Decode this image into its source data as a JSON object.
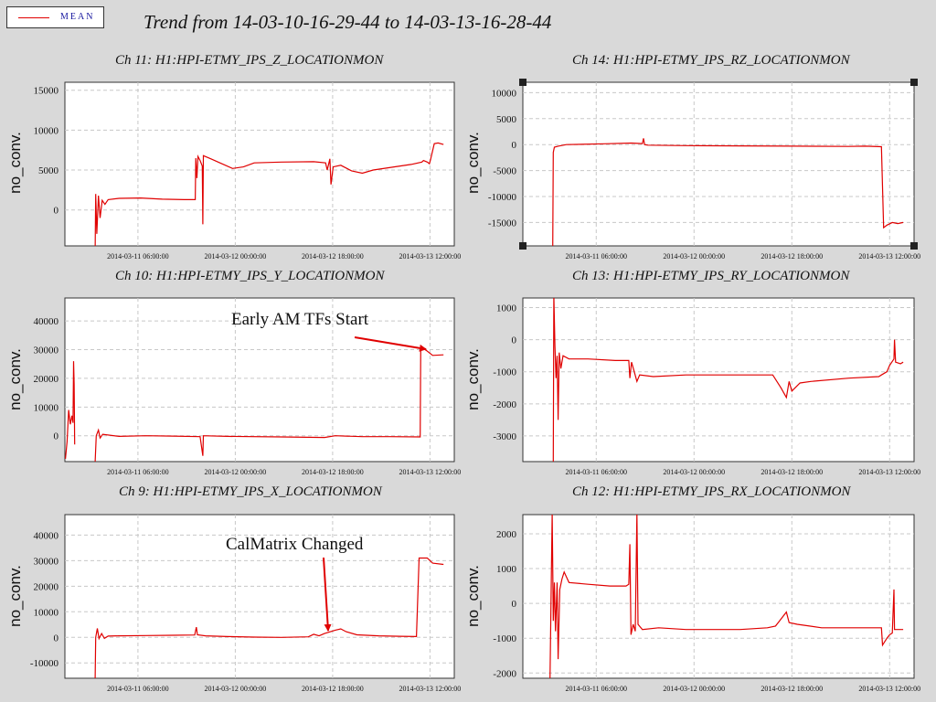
{
  "title": "Trend from 14-03-10-16-29-44 to 14-03-13-16-28-44",
  "legend": {
    "label": "MEAN",
    "color": "#e00000"
  },
  "chart_data": [
    {
      "type": "line",
      "title": "Ch 11: H1:HPI-ETMY_IPS_Z_LOCATIONMON",
      "ylabel": "no_conv.",
      "xlabel": "",
      "yticks": [
        0,
        5000,
        10000,
        15000
      ],
      "ylim": [
        -4500,
        16000
      ],
      "xticks": [
        "2014-03-11 06:00:00",
        "2014-03-12 00:00:00",
        "2014-03-12 18:00:00",
        "2014-03-13 12:00:00"
      ],
      "xtick_hours": [
        13.505,
        31.505,
        49.505,
        67.505
      ],
      "xlim_hours": [
        0,
        72
      ],
      "grid": true,
      "series": [
        {
          "color": "#e00000",
          "points": [
            [
              5.6,
              -5000
            ],
            [
              5.7,
              2000
            ],
            [
              5.9,
              -3000
            ],
            [
              6.2,
              1800
            ],
            [
              6.5,
              -1000
            ],
            [
              6.9,
              1200
            ],
            [
              7.4,
              700
            ],
            [
              8,
              1300
            ],
            [
              10,
              1450
            ],
            [
              14,
              1500
            ],
            [
              18,
              1350
            ],
            [
              22,
              1300
            ],
            [
              24.1,
              1300
            ],
            [
              24.2,
              6500
            ],
            [
              24.4,
              4000
            ],
            [
              24.6,
              6700
            ],
            [
              25,
              6200
            ],
            [
              25.4,
              5500
            ],
            [
              25.5,
              -1800
            ],
            [
              25.6,
              6800
            ],
            [
              27,
              6400
            ],
            [
              29,
              5800
            ],
            [
              31,
              5200
            ],
            [
              33,
              5400
            ],
            [
              35,
              5900
            ],
            [
              40,
              6000
            ],
            [
              46,
              6050
            ],
            [
              48.2,
              5900
            ],
            [
              48.5,
              5000
            ],
            [
              49,
              6400
            ],
            [
              49.2,
              3200
            ],
            [
              49.6,
              5400
            ],
            [
              51,
              5600
            ],
            [
              53,
              4900
            ],
            [
              55,
              4600
            ],
            [
              57,
              5000
            ],
            [
              60,
              5300
            ],
            [
              64,
              5700
            ],
            [
              66,
              6000
            ],
            [
              66.3,
              6200
            ],
            [
              67,
              6000
            ],
            [
              67.4,
              5800
            ],
            [
              67.6,
              6300
            ],
            [
              68.3,
              8300
            ],
            [
              69,
              8400
            ],
            [
              70,
              8200
            ]
          ]
        }
      ]
    },
    {
      "type": "line",
      "title": "Ch 14: H1:HPI-ETMY_IPS_RZ_LOCATIONMON",
      "ylabel": "no_conv.",
      "xlabel": "",
      "yticks": [
        -15000,
        -10000,
        -5000,
        0,
        5000,
        10000
      ],
      "ylim": [
        -19500,
        12000
      ],
      "xticks": [
        "2014-03-11 06:00:00",
        "2014-03-12 00:00:00",
        "2014-03-12 18:00:00",
        "2014-03-13 12:00:00"
      ],
      "xtick_hours": [
        13.505,
        31.505,
        49.505,
        67.505
      ],
      "xlim_hours": [
        0,
        72
      ],
      "grid": true,
      "series": [
        {
          "color": "#e00000",
          "points": [
            [
              5.5,
              -20000
            ],
            [
              5.6,
              -1500
            ],
            [
              5.8,
              -500
            ],
            [
              6.5,
              -300
            ],
            [
              8,
              0
            ],
            [
              15,
              150
            ],
            [
              20,
              300
            ],
            [
              22,
              200
            ],
            [
              22.2,
              1200
            ],
            [
              22.4,
              0
            ],
            [
              23,
              -100
            ],
            [
              30,
              -200
            ],
            [
              40,
              -250
            ],
            [
              50,
              -300
            ],
            [
              60,
              -350
            ],
            [
              63,
              -300
            ],
            [
              66,
              -400
            ],
            [
              66.4,
              -16000
            ],
            [
              67,
              -15500
            ],
            [
              68,
              -15000
            ],
            [
              69,
              -15200
            ],
            [
              70,
              -15000
            ]
          ]
        }
      ]
    },
    {
      "type": "line",
      "title": "Ch 10: H1:HPI-ETMY_IPS_Y_LOCATIONMON",
      "ylabel": "no_conv.",
      "xlabel": "",
      "yticks": [
        0,
        10000,
        20000,
        30000,
        40000
      ],
      "ylim": [
        -9000,
        48000
      ],
      "xticks": [
        "2014-03-11 06:00:00",
        "2014-03-12 00:00:00",
        "2014-03-12 18:00:00",
        "2014-03-13 12:00:00"
      ],
      "xtick_hours": [
        13.505,
        31.505,
        49.505,
        67.505
      ],
      "xlim_hours": [
        0,
        72
      ],
      "grid": true,
      "annotations": [
        {
          "text": "Early AM TFs Start",
          "x_hour": 66,
          "y": 30500
        }
      ],
      "series": [
        {
          "color": "#e00000",
          "points": [
            [
              0.1,
              -8000
            ],
            [
              0.4,
              -2000
            ],
            [
              0.7,
              9000
            ],
            [
              1,
              4000
            ],
            [
              1.3,
              7000
            ],
            [
              1.5,
              4500
            ],
            [
              1.6,
              26000
            ],
            [
              1.7,
              18000
            ],
            [
              1.8,
              -3000
            ]
          ]
        },
        {
          "color": "#e00000",
          "points": [
            [
              5.6,
              -9000
            ],
            [
              5.8,
              0
            ],
            [
              6.2,
              2000
            ],
            [
              6.5,
              -800
            ],
            [
              7,
              500
            ],
            [
              10,
              -200
            ],
            [
              15,
              0
            ],
            [
              20,
              -100
            ],
            [
              25,
              -300
            ],
            [
              25.5,
              -7000
            ],
            [
              25.6,
              0
            ],
            [
              30,
              -200
            ],
            [
              40,
              -400
            ],
            [
              48,
              -600
            ],
            [
              50,
              0
            ],
            [
              55,
              -300
            ],
            [
              60,
              -300
            ],
            [
              65.7,
              -400
            ],
            [
              65.8,
              31000
            ],
            [
              67,
              29500
            ],
            [
              68,
              28000
            ],
            [
              70,
              28200
            ]
          ]
        }
      ]
    },
    {
      "type": "line",
      "title": "Ch 13: H1:HPI-ETMY_IPS_RY_LOCATIONMON",
      "ylabel": "no_conv.",
      "xlabel": "",
      "yticks": [
        -3000,
        -2000,
        -1000,
        0,
        1000
      ],
      "ylim": [
        -3800,
        1300
      ],
      "xticks": [
        "2014-03-11 06:00:00",
        "2014-03-12 00:00:00",
        "2014-03-12 18:00:00",
        "2014-03-13 12:00:00"
      ],
      "xtick_hours": [
        13.505,
        31.505,
        49.505,
        67.505
      ],
      "xlim_hours": [
        0,
        72
      ],
      "grid": true,
      "series": [
        {
          "color": "#e00000",
          "points": [
            [
              5.6,
              -3800
            ],
            [
              5.7,
              1400
            ],
            [
              5.9,
              -200
            ],
            [
              6.1,
              -1200
            ],
            [
              6.3,
              -500
            ],
            [
              6.5,
              -2500
            ],
            [
              6.7,
              -400
            ],
            [
              7,
              -900
            ],
            [
              7.4,
              -500
            ],
            [
              8.5,
              -600
            ],
            [
              12,
              -600
            ],
            [
              17,
              -650
            ],
            [
              19.5,
              -650
            ],
            [
              19.7,
              -1200
            ],
            [
              20,
              -700
            ],
            [
              20.5,
              -1000
            ],
            [
              21,
              -1300
            ],
            [
              21.5,
              -1100
            ],
            [
              24,
              -1150
            ],
            [
              30,
              -1100
            ],
            [
              40,
              -1100
            ],
            [
              46,
              -1100
            ],
            [
              47.5,
              -1500
            ],
            [
              48.5,
              -1800
            ],
            [
              49,
              -1300
            ],
            [
              49.5,
              -1600
            ],
            [
              51,
              -1350
            ],
            [
              53,
              -1300
            ],
            [
              60,
              -1200
            ],
            [
              65.5,
              -1150
            ],
            [
              66,
              -1100
            ],
            [
              67,
              -1000
            ],
            [
              67.5,
              -800
            ],
            [
              68.3,
              -600
            ],
            [
              68.4,
              0
            ],
            [
              68.6,
              -700
            ],
            [
              69.5,
              -750
            ],
            [
              70,
              -700
            ]
          ]
        }
      ]
    },
    {
      "type": "line",
      "title": "Ch 9: H1:HPI-ETMY_IPS_X_LOCATIONMON",
      "ylabel": "no_conv.",
      "xlabel": "",
      "yticks": [
        -10000,
        0,
        10000,
        20000,
        30000,
        40000
      ],
      "ylim": [
        -16000,
        48000
      ],
      "xticks": [
        "2014-03-11 06:00:00",
        "2014-03-12 00:00:00",
        "2014-03-12 18:00:00",
        "2014-03-13 12:00:00"
      ],
      "xtick_hours": [
        13.505,
        31.505,
        49.505,
        67.505
      ],
      "xlim_hours": [
        0,
        72
      ],
      "grid": true,
      "annotations": [
        {
          "text": "CalMatrix Changed",
          "x_hour": 45,
          "y": 1500
        }
      ],
      "series": [
        {
          "color": "#e00000",
          "points": [
            [
              5.6,
              -16000
            ],
            [
              5.7,
              0
            ],
            [
              6,
              3500
            ],
            [
              6.3,
              -500
            ],
            [
              6.8,
              1500
            ],
            [
              7.3,
              -400
            ],
            [
              8,
              500
            ],
            [
              10,
              600
            ],
            [
              15,
              700
            ],
            [
              20,
              800
            ],
            [
              24,
              900
            ],
            [
              24.3,
              4000
            ],
            [
              24.5,
              1000
            ],
            [
              26,
              600
            ],
            [
              30,
              300
            ],
            [
              35,
              100
            ],
            [
              40,
              0
            ],
            [
              45,
              200
            ],
            [
              46,
              1200
            ],
            [
              47,
              600
            ],
            [
              48,
              1500
            ],
            [
              50,
              2800
            ],
            [
              51,
              3300
            ],
            [
              52,
              2200
            ],
            [
              54,
              1000
            ],
            [
              58,
              600
            ],
            [
              62,
              400
            ],
            [
              65,
              300
            ],
            [
              65.5,
              31000
            ],
            [
              67,
              31000
            ],
            [
              68,
              29000
            ],
            [
              70,
              28500
            ]
          ]
        }
      ]
    },
    {
      "type": "line",
      "title": "Ch 12: H1:HPI-ETMY_IPS_RX_LOCATIONMON",
      "ylabel": "no_conv.",
      "xlabel": "",
      "yticks": [
        -2000,
        -1000,
        0,
        1000,
        2000
      ],
      "ylim": [
        -2150,
        2550
      ],
      "xticks": [
        "2014-03-11 06:00:00",
        "2014-03-12 00:00:00",
        "2014-03-12 18:00:00",
        "2014-03-13 12:00:00"
      ],
      "xtick_hours": [
        13.505,
        31.505,
        49.505,
        67.505
      ],
      "xlim_hours": [
        0,
        72
      ],
      "grid": true,
      "series": [
        {
          "color": "#e00000",
          "points": [
            [
              5,
              -2200
            ],
            [
              5.4,
              2600
            ],
            [
              5.6,
              -500
            ],
            [
              5.8,
              600
            ],
            [
              6,
              -800
            ],
            [
              6.3,
              600
            ],
            [
              6.5,
              -1600
            ],
            [
              6.8,
              400
            ],
            [
              7.2,
              700
            ],
            [
              7.6,
              900
            ],
            [
              8.5,
              600
            ],
            [
              12,
              550
            ],
            [
              16,
              500
            ],
            [
              19,
              500
            ],
            [
              19.5,
              550
            ],
            [
              19.7,
              1700
            ],
            [
              19.9,
              -900
            ],
            [
              20.3,
              -600
            ],
            [
              20.7,
              -800
            ],
            [
              21,
              2600
            ],
            [
              21.2,
              -600
            ],
            [
              22,
              -750
            ],
            [
              25,
              -700
            ],
            [
              30,
              -750
            ],
            [
              40,
              -750
            ],
            [
              45,
              -700
            ],
            [
              46.5,
              -650
            ],
            [
              47,
              -550
            ],
            [
              48.5,
              -250
            ],
            [
              49,
              -550
            ],
            [
              50.5,
              -600
            ],
            [
              55,
              -700
            ],
            [
              60,
              -700
            ],
            [
              66,
              -700
            ],
            [
              66.2,
              -1200
            ],
            [
              67,
              -1000
            ],
            [
              67.5,
              -900
            ],
            [
              68,
              -850
            ],
            [
              68.3,
              400
            ],
            [
              68.4,
              -750
            ],
            [
              70,
              -750
            ]
          ]
        }
      ]
    }
  ]
}
